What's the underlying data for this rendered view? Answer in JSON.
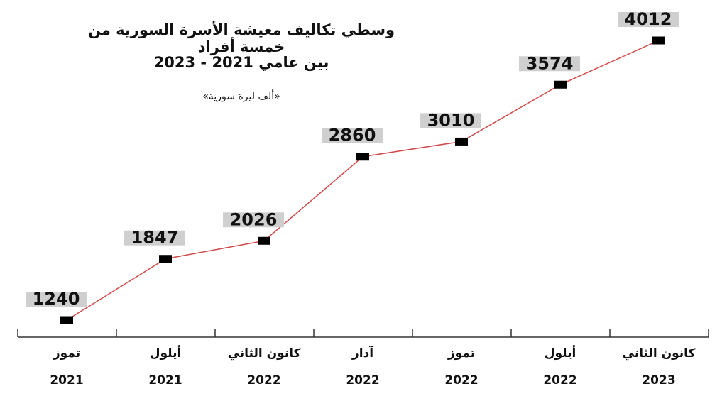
{
  "chart_data": {
    "type": "line",
    "title": "وسطي تكاليف معيشة الأسرة السورية من خمسة أفراد",
    "subtitle": "بين عامي 2021 - 2023",
    "unit": "«ألف ليرة سورية»",
    "categories": [
      {
        "month": "تموز",
        "year": "2021"
      },
      {
        "month": "أيلول",
        "year": "2021"
      },
      {
        "month": "كانون الثاني",
        "year": "2022"
      },
      {
        "month": "آذار",
        "year": "2022"
      },
      {
        "month": "تموز",
        "year": "2022"
      },
      {
        "month": "أيلول",
        "year": "2022"
      },
      {
        "month": "كانون الثاني",
        "year": "2023"
      }
    ],
    "values": [
      1240,
      1847,
      2026,
      2860,
      3010,
      3574,
      4012
    ],
    "colors": {
      "line": "#d04a4a",
      "marker": "#000000",
      "label_bg": "#cfcfcf"
    },
    "grid": false,
    "legend": "none"
  }
}
